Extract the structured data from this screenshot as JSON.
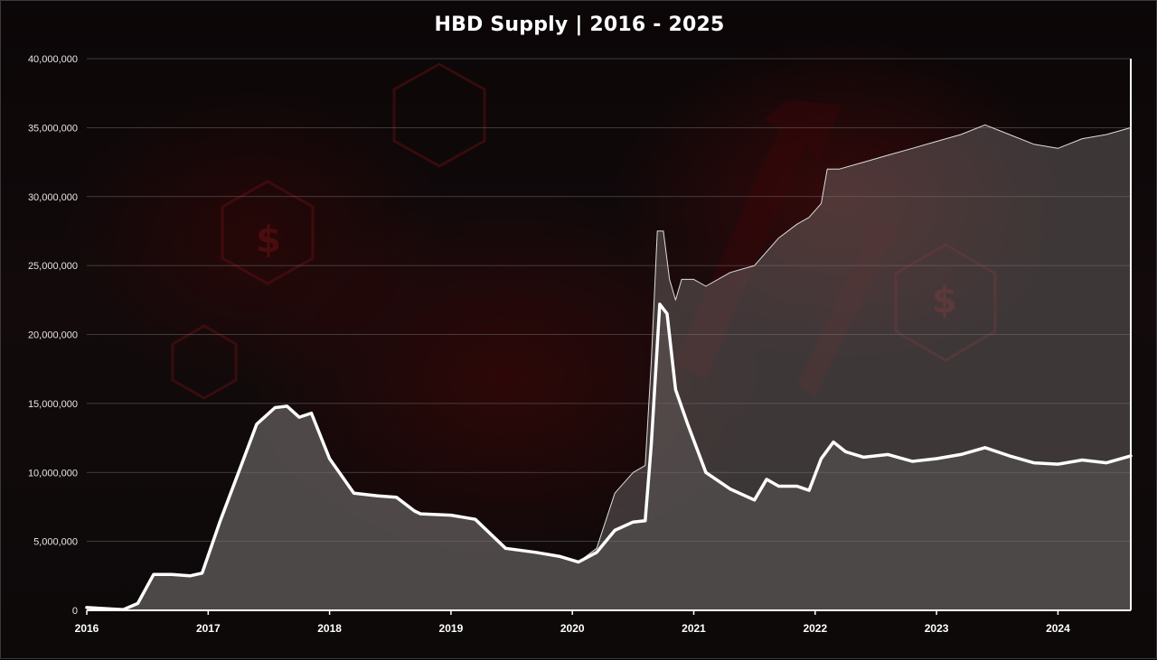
{
  "chart_data": {
    "type": "area",
    "title": "HBD Supply | 2016 - 2025",
    "xlabel": "",
    "ylabel": "",
    "xlim": [
      2016.0,
      2024.6
    ],
    "ylim": [
      0,
      40000000
    ],
    "yticks": [
      0,
      5000000,
      10000000,
      15000000,
      20000000,
      25000000,
      30000000,
      35000000,
      40000000
    ],
    "ytick_labels": [
      "0",
      "5,000,000",
      "10,000,000",
      "15,000,000",
      "20,000,000",
      "25,000,000",
      "30,000,000",
      "35,000,000",
      "40,000,000"
    ],
    "xticks": [
      2016,
      2017,
      2018,
      2019,
      2020,
      2021,
      2022,
      2023,
      2024
    ],
    "xtick_labels": [
      "2016",
      "2017",
      "2018",
      "2019",
      "2020",
      "2021",
      "2022",
      "2023",
      "2024"
    ],
    "grid": true,
    "legend": false,
    "colors": {
      "background": "#0d0909",
      "fill": "#5a5656",
      "line_main": "#ffffff",
      "line_thin": "#dddddd"
    },
    "series": [
      {
        "style": "thin",
        "x": [
          2016.0,
          2016.3,
          2016.42,
          2016.55,
          2016.7,
          2016.85,
          2016.95,
          2017.1,
          2017.25,
          2017.4,
          2017.55,
          2017.65,
          2017.75,
          2017.85,
          2018.0,
          2018.2,
          2018.4,
          2018.55,
          2018.7,
          2018.75,
          2019.0,
          2019.2,
          2019.45,
          2019.7,
          2019.9,
          2020.05,
          2020.2,
          2020.35,
          2020.5,
          2020.6,
          2020.65,
          2020.7,
          2020.75,
          2020.8,
          2020.85,
          2020.9,
          2021.0,
          2021.1,
          2021.3,
          2021.5,
          2021.6,
          2021.7,
          2021.85,
          2021.95,
          2022.05,
          2022.1,
          2022.2,
          2022.4,
          2022.6,
          2022.8,
          2023.0,
          2023.2,
          2023.4,
          2023.6,
          2023.8,
          2024.0,
          2024.2,
          2024.4,
          2024.6
        ],
        "values": [
          200000,
          50000,
          500000,
          2600000,
          2600000,
          2500000,
          2700000,
          6500000,
          10000000,
          13500000,
          14700000,
          14800000,
          14000000,
          14300000,
          11000000,
          8500000,
          8300000,
          8200000,
          7200000,
          7000000,
          6900000,
          6600000,
          4500000,
          4200000,
          3900000,
          3500000,
          4500000,
          8500000,
          10000000,
          10500000,
          18000000,
          27500000,
          27500000,
          24000000,
          22500000,
          24000000,
          24000000,
          23500000,
          24500000,
          25000000,
          26000000,
          27000000,
          28000000,
          28500000,
          29500000,
          32000000,
          32000000,
          32500000,
          33000000,
          33500000,
          34000000,
          34500000,
          35200000,
          34500000,
          33800000,
          33500000,
          34200000,
          34500000,
          35000000
        ]
      },
      {
        "style": "thick",
        "x": [
          2016.0,
          2016.3,
          2016.42,
          2016.55,
          2016.7,
          2016.85,
          2016.95,
          2017.1,
          2017.25,
          2017.4,
          2017.55,
          2017.65,
          2017.75,
          2017.85,
          2018.0,
          2018.2,
          2018.4,
          2018.55,
          2018.7,
          2018.75,
          2019.0,
          2019.2,
          2019.45,
          2019.7,
          2019.9,
          2020.05,
          2020.2,
          2020.35,
          2020.5,
          2020.6,
          2020.65,
          2020.72,
          2020.78,
          2020.85,
          2020.95,
          2021.1,
          2021.3,
          2021.5,
          2021.6,
          2021.7,
          2021.85,
          2021.95,
          2022.05,
          2022.15,
          2022.25,
          2022.4,
          2022.6,
          2022.8,
          2023.0,
          2023.2,
          2023.4,
          2023.6,
          2023.8,
          2024.0,
          2024.2,
          2024.4,
          2024.6
        ],
        "values": [
          200000,
          50000,
          500000,
          2600000,
          2600000,
          2500000,
          2700000,
          6500000,
          10000000,
          13500000,
          14700000,
          14800000,
          14000000,
          14300000,
          11000000,
          8500000,
          8300000,
          8200000,
          7200000,
          7000000,
          6900000,
          6600000,
          4500000,
          4200000,
          3900000,
          3500000,
          4200000,
          5800000,
          6400000,
          6500000,
          12000000,
          22200000,
          21500000,
          16000000,
          13500000,
          10000000,
          8800000,
          8000000,
          9500000,
          9000000,
          9000000,
          8700000,
          11000000,
          12200000,
          11500000,
          11100000,
          11300000,
          10800000,
          11000000,
          11300000,
          11800000,
          11200000,
          10700000,
          10600000,
          10900000,
          10700000,
          11200000
        ]
      }
    ]
  }
}
